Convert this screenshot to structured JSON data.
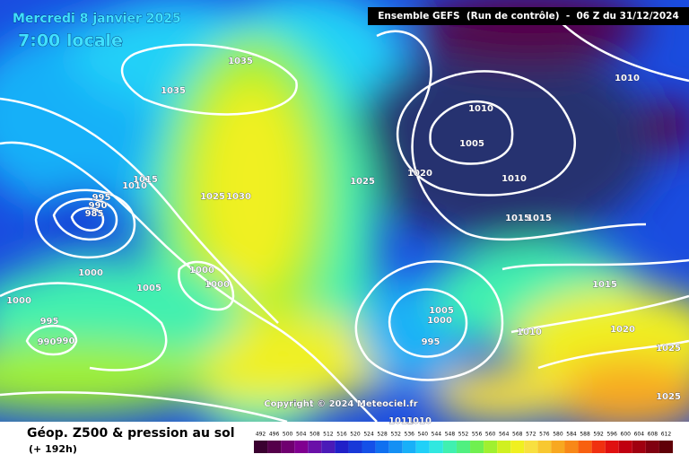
{
  "header": {
    "date": "Mercredi 8 janvier 2025",
    "time": "7:00 locale",
    "run": "Ensemble GEFS  (Run de contrôle)  -  06 Z du 31/12/2024"
  },
  "isobar_labels": [
    "1035",
    "1035",
    "1015",
    "1010",
    "995",
    "990",
    "985",
    "1025",
    "1030",
    "1025",
    "1020",
    "1010",
    "1005",
    "1010",
    "1010",
    "1015",
    "1015",
    "1000",
    "1005",
    "1000",
    "1000",
    "1000",
    "995",
    "990",
    "990",
    "1005",
    "1000",
    "995",
    "1010",
    "1015",
    "1020",
    "1025",
    "1025",
    "1011",
    "1010"
  ],
  "copyright": "Copyright © 2024 Meteociel.fr",
  "footer": {
    "title": "Géop. Z500 & pression au sol",
    "lead": "(+ 192h)"
  },
  "colorbar": {
    "ticks": [
      492,
      496,
      500,
      504,
      508,
      512,
      516,
      520,
      524,
      528,
      532,
      536,
      540,
      544,
      548,
      552,
      556,
      560,
      564,
      568,
      572,
      576,
      580,
      584,
      588,
      592,
      596,
      600,
      604,
      608,
      612
    ],
    "colors": [
      "#3a0030",
      "#55004a",
      "#700070",
      "#800090",
      "#6a10a8",
      "#4a1ab8",
      "#2020c8",
      "#1838d8",
      "#1450e8",
      "#1070f0",
      "#1490f4",
      "#18b0f8",
      "#20d0f8",
      "#30e8e0",
      "#40f0b0",
      "#50f080",
      "#70f050",
      "#a0f030",
      "#d0f020",
      "#f0f020",
      "#f8e040",
      "#f8c830",
      "#f8a820",
      "#f88818",
      "#f86010",
      "#f03010",
      "#e01010",
      "#c00010",
      "#a00010",
      "#800010",
      "#600008"
    ]
  }
}
